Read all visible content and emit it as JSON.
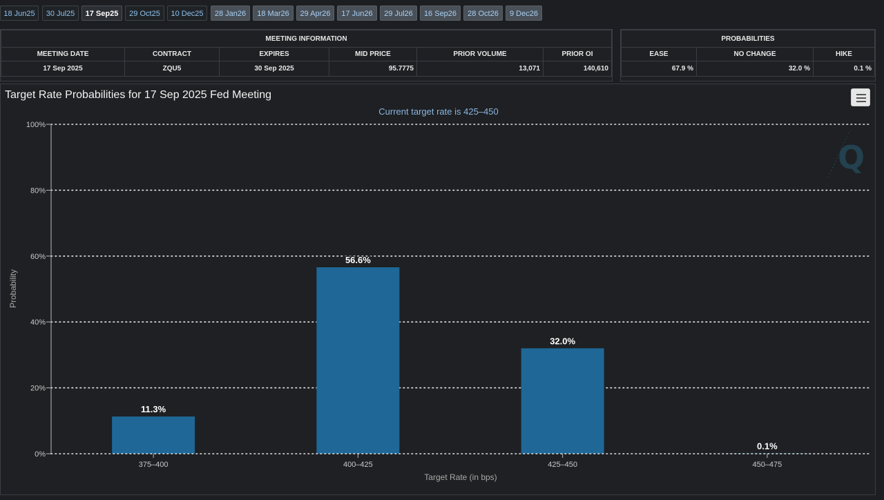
{
  "tabs": [
    {
      "label": "18 Jun25",
      "state": "past"
    },
    {
      "label": "30 Jul25",
      "state": "past"
    },
    {
      "label": "17 Sep25",
      "state": "active"
    },
    {
      "label": "29 Oct25",
      "state": "past"
    },
    {
      "label": "10 Dec25",
      "state": "past"
    },
    {
      "label": "28 Jan26",
      "state": "future"
    },
    {
      "label": "18 Mar26",
      "state": "future"
    },
    {
      "label": "29 Apr26",
      "state": "future"
    },
    {
      "label": "17 Jun26",
      "state": "future"
    },
    {
      "label": "29 Jul26",
      "state": "future"
    },
    {
      "label": "16 Sep26",
      "state": "future"
    },
    {
      "label": "28 Oct26",
      "state": "future"
    },
    {
      "label": "9 Dec26",
      "state": "future"
    }
  ],
  "meeting_info": {
    "header": "MEETING INFORMATION",
    "columns": [
      "MEETING DATE",
      "CONTRACT",
      "EXPIRES",
      "MID PRICE",
      "PRIOR VOLUME",
      "PRIOR OI"
    ],
    "values": [
      "17 Sep 2025",
      "ZQU5",
      "30 Sep 2025",
      "95.7775",
      "13,071",
      "140,610"
    ]
  },
  "probabilities": {
    "header": "PROBABILITIES",
    "columns": [
      "EASE",
      "NO CHANGE",
      "HIKE"
    ],
    "values": [
      "67.9 %",
      "32.0 %",
      "0.1 %"
    ]
  },
  "chart_data": {
    "type": "bar",
    "title": "Target Rate Probabilities for 17 Sep 2025 Fed Meeting",
    "subtitle": "Current target rate is 425–450",
    "xlabel": "Target Rate (in bps)",
    "ylabel": "Probability",
    "categories": [
      "375–400",
      "400–425",
      "425–450",
      "450–475"
    ],
    "values": [
      11.3,
      56.6,
      32.0,
      0.1
    ],
    "data_labels": [
      "11.3%",
      "56.6%",
      "32.0%",
      "0.1%"
    ],
    "ylim": [
      0,
      100
    ],
    "yticks": [
      0,
      20,
      40,
      60,
      80,
      100
    ],
    "ytick_labels": [
      "0%",
      "20%",
      "40%",
      "60%",
      "80%",
      "100%"
    ],
    "grid": true,
    "bar_color": "#1f6797"
  }
}
